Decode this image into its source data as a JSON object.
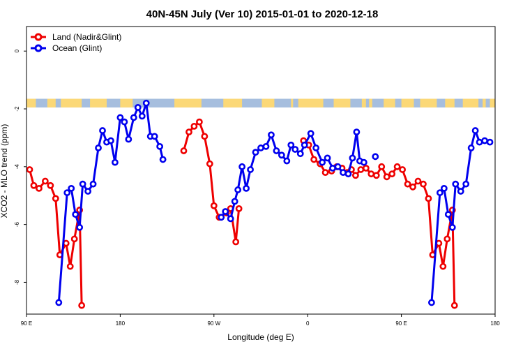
{
  "chart_data": {
    "type": "line",
    "title": "40N-45N July (Ver 10)   2015-01-01 to 2020-12-18",
    "xlabel": "Longitude (deg E)",
    "ylabel": "XCO2 - MLO trend (ppm)",
    "x_ticks": [
      {
        "value": 90,
        "label": "90 E"
      },
      {
        "value": 180,
        "label": "180"
      },
      {
        "value": 270,
        "label": "90 W"
      },
      {
        "value": 360,
        "label": "0"
      },
      {
        "value": 450,
        "label": "90 E"
      },
      {
        "value": 540,
        "label": "180"
      }
    ],
    "y_ticks": [
      0,
      -2,
      -4,
      -6,
      -8
    ],
    "xlim": [
      90,
      540
    ],
    "ylim": [
      -9.1,
      0.85
    ],
    "grid": false,
    "legend_position": "top-left",
    "colors": {
      "land": "#ee0000",
      "ocean": "#0000ee",
      "land_band": "#fbd877",
      "ocean_band": "#a6bede"
    },
    "series": [
      {
        "name": "Land (Nadir&Glint)",
        "color": "#ee0000",
        "points": [
          [
            93,
            -4.1
          ],
          [
            97,
            -4.65
          ],
          [
            102,
            -4.75
          ],
          [
            108,
            -4.5
          ],
          [
            113,
            -4.65
          ],
          [
            118,
            -5.1
          ],
          [
            122,
            -7.05
          ],
          [
            128,
            -6.65
          ],
          [
            132,
            -7.45
          ],
          [
            136,
            -6.5
          ],
          [
            141,
            -5.5
          ],
          [
            143,
            -8.8
          ],
          null,
          [
            241,
            -3.45
          ],
          [
            246,
            -2.8
          ],
          [
            251,
            -2.6
          ],
          [
            256,
            -2.45
          ],
          [
            261,
            -2.95
          ],
          [
            266,
            -3.9
          ],
          [
            270,
            -5.35
          ],
          [
            275,
            -5.75
          ],
          null,
          [
            282,
            -5.6
          ],
          [
            286,
            -5.45
          ],
          [
            291,
            -6.6
          ],
          [
            294,
            -5.45
          ],
          null,
          [
            356,
            -3.1
          ],
          [
            361,
            -3.25
          ],
          [
            366,
            -3.75
          ],
          [
            372,
            -3.9
          ],
          [
            377,
            -4.2
          ],
          [
            383,
            -4.15
          ],
          [
            388,
            -4.0
          ],
          [
            393,
            -4.05
          ],
          [
            398,
            -4.2
          ],
          [
            402,
            -4.1
          ],
          [
            406,
            -4.3
          ],
          [
            411,
            -4.1
          ],
          [
            416,
            -4.05
          ],
          [
            421,
            -4.25
          ],
          [
            426,
            -4.3
          ],
          [
            431,
            -4.0
          ],
          [
            436,
            -4.35
          ],
          [
            441,
            -4.25
          ],
          [
            446,
            -4.0
          ],
          [
            451,
            -4.1
          ],
          [
            456,
            -4.6
          ],
          [
            461,
            -4.7
          ],
          [
            466,
            -4.5
          ],
          [
            471,
            -4.6
          ],
          [
            476,
            -5.1
          ],
          [
            480,
            -7.05
          ],
          [
            486,
            -6.65
          ],
          [
            490,
            -7.45
          ],
          [
            494,
            -6.5
          ],
          [
            499,
            -5.5
          ],
          [
            501,
            -8.8
          ]
        ]
      },
      {
        "name": "Ocean (Glint)",
        "color": "#0000ee",
        "points": [
          [
            121,
            -8.7
          ],
          [
            129,
            -4.9
          ],
          [
            133,
            -4.75
          ],
          [
            137,
            -5.65
          ],
          [
            141,
            -6.1
          ],
          [
            144,
            -4.6
          ],
          [
            149,
            -4.85
          ],
          [
            154,
            -4.6
          ],
          [
            159,
            -3.35
          ],
          [
            163,
            -2.75
          ],
          [
            167,
            -3.15
          ],
          [
            171,
            -3.1
          ],
          [
            175,
            -3.85
          ],
          [
            180,
            -2.3
          ],
          [
            184,
            -2.45
          ],
          [
            188,
            -3.05
          ],
          [
            193,
            -2.3
          ],
          [
            197,
            -1.95
          ],
          [
            201,
            -2.25
          ],
          [
            205,
            -1.8
          ],
          [
            209,
            -2.95
          ],
          [
            213,
            -2.95
          ],
          [
            218,
            -3.3
          ],
          [
            221,
            -3.75
          ],
          null,
          [
            277,
            -5.75
          ],
          [
            281,
            -5.55
          ],
          [
            286,
            -5.8
          ],
          [
            290,
            -5.2
          ],
          [
            293,
            -4.8
          ],
          [
            297,
            -4.0
          ],
          [
            301,
            -4.75
          ],
          [
            305,
            -4.1
          ],
          [
            310,
            -3.5
          ],
          [
            315,
            -3.35
          ],
          [
            320,
            -3.3
          ],
          [
            325,
            -2.9
          ],
          [
            330,
            -3.45
          ],
          [
            335,
            -3.6
          ],
          [
            340,
            -3.8
          ],
          [
            344,
            -3.25
          ],
          [
            348,
            -3.4
          ],
          [
            353,
            -3.55
          ],
          [
            357,
            -3.25
          ],
          [
            363,
            -2.85
          ],
          [
            368,
            -3.35
          ],
          [
            374,
            -3.85
          ],
          [
            379,
            -3.7
          ],
          [
            384,
            -4.05
          ],
          [
            389,
            -4.0
          ],
          [
            394,
            -4.2
          ],
          [
            399,
            -4.25
          ],
          [
            403,
            -3.7
          ],
          [
            407,
            -2.8
          ],
          [
            410,
            -3.8
          ],
          [
            414,
            -3.85
          ],
          null,
          [
            425,
            -3.65
          ],
          null,
          [
            479,
            -8.7
          ],
          [
            487,
            -4.9
          ],
          [
            491,
            -4.75
          ],
          [
            495,
            -5.65
          ],
          [
            499,
            -6.1
          ],
          [
            502,
            -4.6
          ],
          [
            507,
            -4.85
          ],
          [
            512,
            -4.6
          ],
          [
            517,
            -3.35
          ],
          [
            521,
            -2.75
          ],
          [
            525,
            -3.15
          ],
          [
            530,
            -3.1
          ],
          [
            535,
            -3.15
          ]
        ]
      }
    ],
    "land_ocean_band": {
      "y_range": [
        -1.65,
        -1.95
      ],
      "land_segments": [
        [
          90,
          99
        ],
        [
          110,
          118
        ],
        [
          123,
          143
        ],
        [
          151,
          167
        ],
        [
          180,
          192
        ],
        [
          232,
          258
        ],
        [
          279,
          297
        ],
        [
          316,
          328
        ],
        [
          344,
          346
        ],
        [
          351,
          375
        ],
        [
          385,
          401
        ],
        [
          412,
          416
        ],
        [
          419,
          422
        ],
        [
          433,
          444
        ],
        [
          450,
          462
        ],
        [
          468,
          484
        ],
        [
          492,
          501
        ],
        [
          509,
          524
        ],
        [
          528,
          531
        ],
        [
          535,
          540
        ]
      ]
    }
  }
}
